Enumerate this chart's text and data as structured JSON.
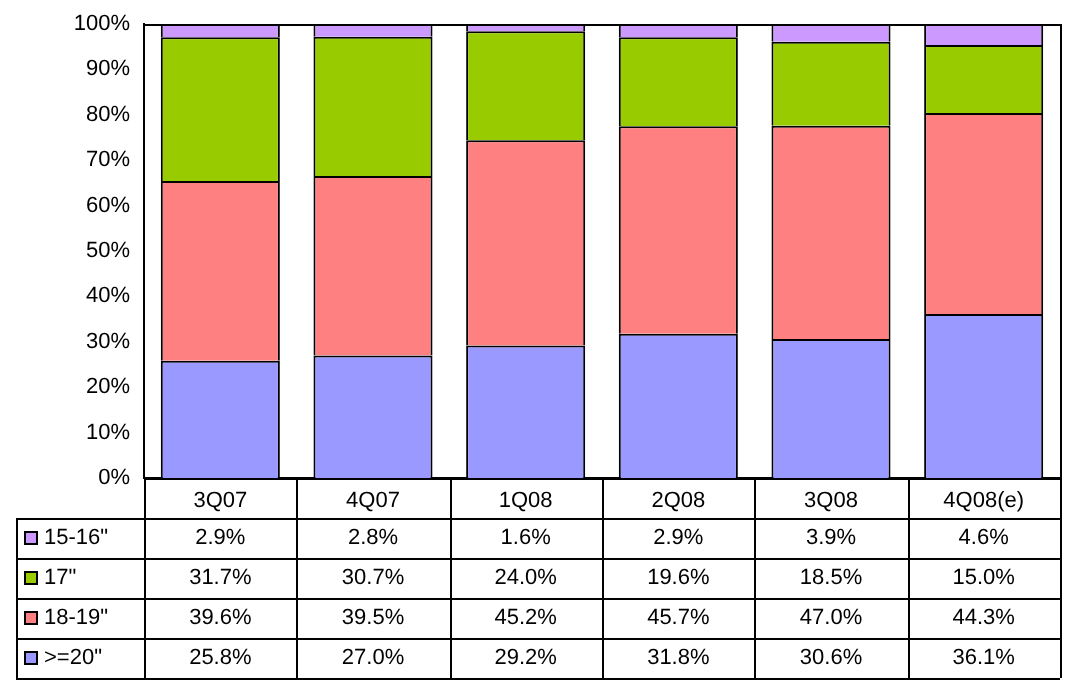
{
  "chart_data": {
    "type": "bar",
    "stacked": true,
    "categories": [
      "3Q07",
      "4Q07",
      "1Q08",
      "2Q08",
      "3Q08",
      "4Q08(e)"
    ],
    "series": [
      {
        "name": ">=20\"",
        "color": "#9999ff",
        "values": [
          25.8,
          27.0,
          29.2,
          31.8,
          30.6,
          36.1
        ],
        "value_labels": [
          "25.8%",
          "27.0%",
          "29.2%",
          "31.8%",
          "30.6%",
          "36.1%"
        ]
      },
      {
        "name": "18-19\"",
        "color": "#ff8080",
        "values": [
          39.6,
          39.5,
          45.2,
          45.7,
          47.0,
          44.3
        ],
        "value_labels": [
          "39.6%",
          "39.5%",
          "45.2%",
          "45.7%",
          "47.0%",
          "44.3%"
        ]
      },
      {
        "name": "17\"",
        "color": "#99cc00",
        "values": [
          31.7,
          30.7,
          24.0,
          19.6,
          18.5,
          15.0
        ],
        "value_labels": [
          "31.7%",
          "30.7%",
          "24.0%",
          "19.6%",
          "18.5%",
          "15.0%"
        ]
      },
      {
        "name": "15-16\"",
        "color": "#cc99ff",
        "values": [
          2.9,
          2.8,
          1.6,
          2.9,
          3.9,
          4.6
        ],
        "value_labels": [
          "2.9%",
          "2.8%",
          "1.6%",
          "2.9%",
          "3.9%",
          "4.6%"
        ]
      }
    ],
    "ylim": [
      0,
      100
    ],
    "yticks": [
      {
        "value": 0,
        "label": "0%"
      },
      {
        "value": 10,
        "label": "10%"
      },
      {
        "value": 20,
        "label": "20%"
      },
      {
        "value": 30,
        "label": "30%"
      },
      {
        "value": 40,
        "label": "40%"
      },
      {
        "value": 50,
        "label": "50%"
      },
      {
        "value": 60,
        "label": "60%"
      },
      {
        "value": 70,
        "label": "70%"
      },
      {
        "value": 80,
        "label": "80%"
      },
      {
        "value": 90,
        "label": "90%"
      },
      {
        "value": 100,
        "label": "100%"
      }
    ],
    "grid": false,
    "legend": "bottom left"
  }
}
